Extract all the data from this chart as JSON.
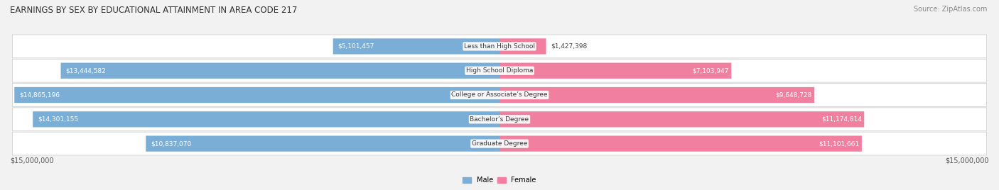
{
  "title": "EARNINGS BY SEX BY EDUCATIONAL ATTAINMENT IN AREA CODE 217",
  "source": "Source: ZipAtlas.com",
  "categories": [
    "Less than High School",
    "High School Diploma",
    "College or Associate’s Degree",
    "Bachelor’s Degree",
    "Graduate Degree"
  ],
  "male_values": [
    5101457,
    13444582,
    14865196,
    14301155,
    10837070
  ],
  "female_values": [
    1427398,
    7103947,
    9648728,
    11174814,
    11101661
  ],
  "male_labels": [
    "$5,101,457",
    "$13,444,582",
    "$14,865,196",
    "$14,301,155",
    "$10,837,070"
  ],
  "female_labels": [
    "$1,427,398",
    "$7,103,947",
    "$9,648,728",
    "$11,174,814",
    "$11,101,661"
  ],
  "male_color": "#7aaed6",
  "female_color": "#f07fa0",
  "background_color": "#f2f2f2",
  "max_value": 15000000,
  "x_label_left": "$15,000,000",
  "x_label_right": "$15,000,000",
  "legend_male": "Male",
  "legend_female": "Female",
  "title_fontsize": 8.5,
  "source_fontsize": 7,
  "bar_label_fontsize": 6.5,
  "category_fontsize": 6.5,
  "axis_fontsize": 7
}
